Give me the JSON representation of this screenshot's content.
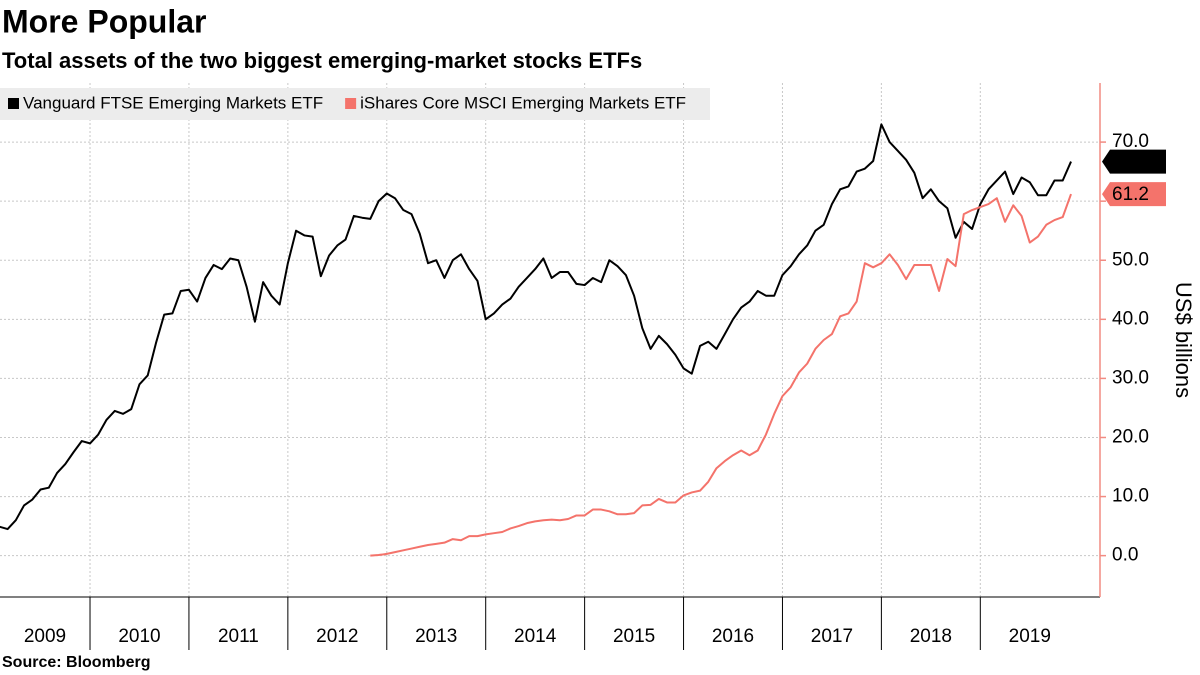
{
  "chart_data": {
    "type": "line",
    "title": "More Popular",
    "subtitle": "Total assets of the two biggest emerging-market stocks ETFs",
    "y_axis_label": "US$ billions",
    "source": "Source: Bloomberg",
    "grid": true,
    "legend_position": "top-left",
    "axis_color": "#f28b82",
    "xlim": [
      2009.09,
      2020.21
    ],
    "xticks": [
      {
        "value": 2009,
        "label": "2009"
      },
      {
        "value": 2010,
        "label": "2010"
      },
      {
        "value": 2011,
        "label": "2011"
      },
      {
        "value": 2012,
        "label": "2012"
      },
      {
        "value": 2013,
        "label": "2013"
      },
      {
        "value": 2014,
        "label": "2014"
      },
      {
        "value": 2015,
        "label": "2015"
      },
      {
        "value": 2016,
        "label": "2016"
      },
      {
        "value": 2017,
        "label": "2017"
      },
      {
        "value": 2018,
        "label": "2018"
      },
      {
        "value": 2019,
        "label": "2019"
      }
    ],
    "ylim": [
      -7,
      80
    ],
    "yticks": [
      {
        "value": 0,
        "label": "0.0"
      },
      {
        "value": 10,
        "label": "10.0"
      },
      {
        "value": 20,
        "label": "20.0"
      },
      {
        "value": 30,
        "label": "30.0"
      },
      {
        "value": 40,
        "label": "40.0"
      },
      {
        "value": 50,
        "label": "50.0"
      },
      {
        "value": 60,
        "label": "60.0"
      },
      {
        "value": 70,
        "label": "70.0"
      }
    ],
    "x": [
      2009.083,
      2009.167,
      2009.25,
      2009.333,
      2009.417,
      2009.5,
      2009.583,
      2009.667,
      2009.75,
      2009.833,
      2009.917,
      2010,
      2010.083,
      2010.167,
      2010.25,
      2010.333,
      2010.417,
      2010.5,
      2010.583,
      2010.667,
      2010.75,
      2010.833,
      2010.917,
      2011,
      2011.083,
      2011.167,
      2011.25,
      2011.333,
      2011.417,
      2011.5,
      2011.583,
      2011.667,
      2011.75,
      2011.833,
      2011.917,
      2012,
      2012.083,
      2012.167,
      2012.25,
      2012.333,
      2012.417,
      2012.5,
      2012.583,
      2012.667,
      2012.75,
      2012.833,
      2012.917,
      2013,
      2013.083,
      2013.167,
      2013.25,
      2013.333,
      2013.417,
      2013.5,
      2013.583,
      2013.667,
      2013.75,
      2013.833,
      2013.917,
      2014,
      2014.083,
      2014.167,
      2014.25,
      2014.333,
      2014.417,
      2014.5,
      2014.583,
      2014.667,
      2014.75,
      2014.833,
      2014.917,
      2015,
      2015.083,
      2015.167,
      2015.25,
      2015.333,
      2015.417,
      2015.5,
      2015.583,
      2015.667,
      2015.75,
      2015.833,
      2015.917,
      2016,
      2016.083,
      2016.167,
      2016.25,
      2016.333,
      2016.417,
      2016.5,
      2016.583,
      2016.667,
      2016.75,
      2016.833,
      2016.917,
      2017,
      2017.083,
      2017.167,
      2017.25,
      2017.333,
      2017.417,
      2017.5,
      2017.583,
      2017.667,
      2017.75,
      2017.833,
      2017.917,
      2018,
      2018.083,
      2018.167,
      2018.25,
      2018.333,
      2018.417,
      2018.5,
      2018.583,
      2018.667,
      2018.75,
      2018.833,
      2018.917,
      2019,
      2019.083,
      2019.167,
      2019.25,
      2019.333,
      2019.417,
      2019.5,
      2019.583,
      2019.667,
      2019.75,
      2019.833,
      2019.917
    ],
    "series": [
      {
        "name": "Vanguard FTSE Emerging Markets ETF",
        "color": "#000000",
        "values": [
          4.9,
          4.5,
          6.0,
          8.5,
          9.5,
          11.2,
          11.5,
          14.0,
          15.5,
          17.5,
          19.4,
          19.0,
          20.5,
          23.0,
          24.5,
          24.0,
          24.8,
          29.0,
          30.5,
          36.0,
          40.8,
          41.0,
          44.8,
          45.0,
          43.0,
          47.0,
          49.2,
          48.5,
          50.3,
          50.0,
          45.5,
          39.6,
          46.3,
          44.0,
          42.5,
          49.5,
          55.0,
          54.2,
          54.0,
          47.3,
          50.8,
          52.5,
          53.5,
          57.5,
          57.2,
          57.0,
          60.0,
          61.3,
          60.5,
          58.5,
          57.8,
          54.5,
          49.5,
          50.0,
          47.0,
          50.0,
          51.0,
          48.5,
          46.5,
          40.0,
          41.0,
          42.5,
          43.5,
          45.5,
          47.0,
          48.5,
          50.3,
          47.0,
          48.0,
          48.0,
          46.0,
          45.8,
          47.0,
          46.3,
          50.0,
          49.0,
          47.5,
          44.0,
          38.5,
          35.0,
          37.2,
          35.8,
          34.0,
          31.7,
          30.8,
          35.5,
          36.2,
          35.0,
          37.5,
          40.0,
          42.0,
          43.0,
          44.8,
          44.0,
          44.0,
          47.5,
          49.0,
          51.0,
          52.5,
          55.0,
          56.0,
          59.5,
          62.0,
          62.5,
          65.0,
          65.5,
          66.8,
          73.0,
          70.0,
          68.5,
          67.0,
          64.8,
          60.5,
          62.0,
          60.0,
          58.8,
          53.8,
          56.5,
          55.3,
          59.5,
          62.0,
          63.5,
          65.0,
          61.2,
          64.0,
          63.2,
          61.0,
          61.0,
          63.5,
          63.5,
          66.7
        ]
      },
      {
        "name": "iShares Core MSCI Emerging Markets ETF",
        "color": "#f4736b",
        "values": [
          null,
          null,
          null,
          null,
          null,
          null,
          null,
          null,
          null,
          null,
          null,
          null,
          null,
          null,
          null,
          null,
          null,
          null,
          null,
          null,
          null,
          null,
          null,
          null,
          null,
          null,
          null,
          null,
          null,
          null,
          null,
          null,
          null,
          null,
          null,
          null,
          null,
          null,
          null,
          null,
          null,
          null,
          null,
          null,
          null,
          0.0,
          0.1,
          0.3,
          0.6,
          0.9,
          1.2,
          1.5,
          1.8,
          2.0,
          2.2,
          2.8,
          2.6,
          3.3,
          3.3,
          3.6,
          3.8,
          4.0,
          4.6,
          5.0,
          5.5,
          5.8,
          6.0,
          6.1,
          6.0,
          6.2,
          6.8,
          6.8,
          7.8,
          7.8,
          7.5,
          7.0,
          7.0,
          7.2,
          8.5,
          8.6,
          9.6,
          9.0,
          9.0,
          10.2,
          10.7,
          11.0,
          12.5,
          14.8,
          16.0,
          17.0,
          17.8,
          17.0,
          17.8,
          20.5,
          24.0,
          27.0,
          28.5,
          31.0,
          32.5,
          35.0,
          36.5,
          37.5,
          40.5,
          41.0,
          43.0,
          49.5,
          48.8,
          49.5,
          51.0,
          49.2,
          46.8,
          49.2,
          49.2,
          49.2,
          44.8,
          50.2,
          49.0,
          57.8,
          58.5,
          59.0,
          59.5,
          60.5,
          56.5,
          59.3,
          57.5,
          53.0,
          54.0,
          56.0,
          56.8,
          57.3,
          61.2
        ]
      }
    ]
  }
}
